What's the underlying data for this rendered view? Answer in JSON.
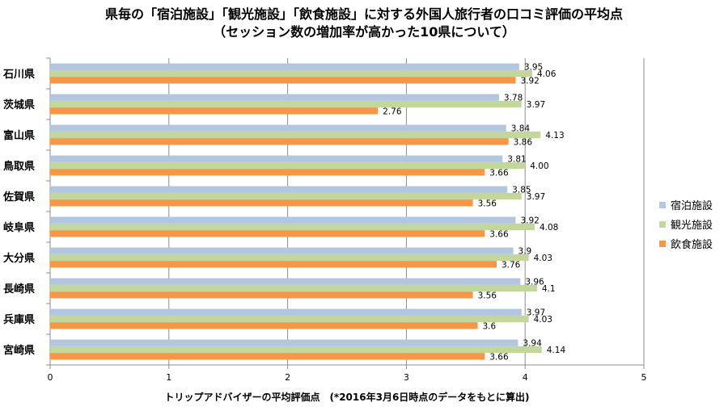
{
  "chart_data": {
    "type": "bar",
    "orientation": "horizontal",
    "title": "県毎の「宿泊施設」「観光施設」「飲食施設」に対する外国人旅行者の口コミ評価の平均点",
    "subtitle": "（セッション数の増加率が高かった10県について）",
    "xlabel": "トリップアドバイザーの平均評価点　(*2016年3月6日時点のデータをもとに算出)",
    "ylabel": "",
    "xlim": [
      0,
      5
    ],
    "xticks": [
      "0",
      "1",
      "2",
      "3",
      "4",
      "5"
    ],
    "grid": true,
    "legend_position": "right",
    "categories": [
      "石川県",
      "茨城県",
      "富山県",
      "鳥取県",
      "佐賀県",
      "岐阜県",
      "大分県",
      "長崎県",
      "兵庫県",
      "宮崎県"
    ],
    "series": [
      {
        "name": "宿泊施設",
        "color": "#b3c6e0",
        "values": [
          3.95,
          3.78,
          3.84,
          3.81,
          3.85,
          3.92,
          3.9,
          3.96,
          3.97,
          3.94
        ],
        "labels": [
          "3.95",
          "3.78",
          "3.84",
          "3.81",
          "3.85",
          "3.92",
          "3.9",
          "3.96",
          "3.97",
          "3.94"
        ]
      },
      {
        "name": "観光施設",
        "color": "#c3d69b",
        "values": [
          4.06,
          3.97,
          4.13,
          4.0,
          3.97,
          4.08,
          4.03,
          4.1,
          4.03,
          4.14
        ],
        "labels": [
          "4.06",
          "3.97",
          "4.13",
          "4.00",
          "3.97",
          "4.08",
          "4.03",
          "4.1",
          "4.03",
          "4.14"
        ]
      },
      {
        "name": "飲食施設",
        "color": "#f79646",
        "values": [
          3.92,
          2.76,
          3.86,
          3.66,
          3.56,
          3.66,
          3.76,
          3.56,
          3.6,
          3.66
        ],
        "labels": [
          "3.92",
          "2.76",
          "3.86",
          "3.66",
          "3.56",
          "3.66",
          "3.76",
          "3.56",
          "3.6",
          "3.66"
        ]
      }
    ]
  }
}
